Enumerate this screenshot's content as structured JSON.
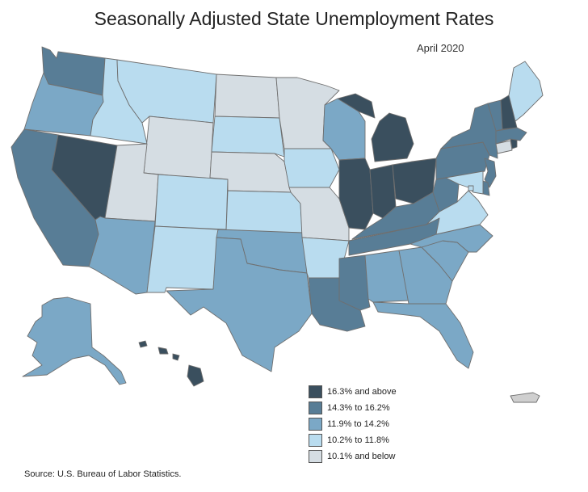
{
  "title": "Seasonally Adjusted State Unemployment Rates",
  "subtitle": "April 2020",
  "source": "Source: U.S. Bureau of Labor Statistics.",
  "legend": [
    {
      "label": "16.3% and above",
      "color": "#3a4f5e"
    },
    {
      "label": "14.3% to 16.2%",
      "color": "#587d96"
    },
    {
      "label": "11.9% to 14.2%",
      "color": "#7ba8c6"
    },
    {
      "label": "10.2% to 11.8%",
      "color": "#b9dcef"
    },
    {
      "label": "10.1% and below",
      "color": "#d5dde3"
    }
  ],
  "no_data_color": "#cfcfcf",
  "states": {
    "WA": 3,
    "OR": 2,
    "CA": 3,
    "NV": 4,
    "ID": 1,
    "MT": 1,
    "WY": 0,
    "UT": 0,
    "AZ": 2,
    "NM": 1,
    "CO": 1,
    "ND": 0,
    "SD": 1,
    "NE": 0,
    "KS": 1,
    "OK": 2,
    "TX": 2,
    "MN": 0,
    "IA": 1,
    "MO": 0,
    "AR": 1,
    "LA": 3,
    "WI": 2,
    "IL": 4,
    "MI": 4,
    "IN": 4,
    "OH": 4,
    "KY": 3,
    "TN": 3,
    "MS": 3,
    "AL": 2,
    "GA": 2,
    "FL": 2,
    "SC": 2,
    "NC": 2,
    "VA": 1,
    "WV": 3,
    "PA": 3,
    "NY": 3,
    "NJ": 3,
    "DE": 3,
    "MD": 1,
    "DC": 1,
    "CT": 0,
    "RI": 4,
    "MA": 3,
    "VT": 3,
    "NH": 4,
    "ME": 1,
    "AK": 2,
    "HI": 4,
    "PR": -1
  }
}
